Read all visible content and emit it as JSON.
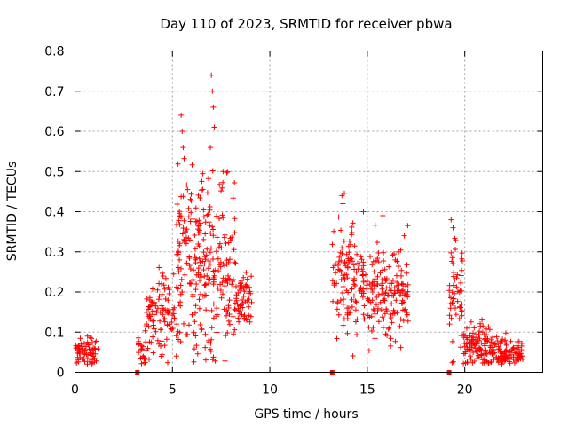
{
  "chart_data": {
    "type": "scatter",
    "title": "Day 110 of 2023, SRMTID for receiver pbwa",
    "xlabel": "GPS time / hours",
    "ylabel": "SRMTID / TECUs",
    "xlim": [
      0,
      24
    ],
    "ylim": [
      0,
      0.8
    ],
    "grid": true,
    "x_ticks": [
      0,
      5,
      10,
      15,
      20
    ],
    "y_ticks": [
      0,
      0.1,
      0.2,
      0.3,
      0.4,
      0.5,
      0.6,
      0.7,
      0.8
    ],
    "marker": "plus",
    "color": "#ff0000",
    "series": [
      {
        "name": "SRMTID",
        "clusters": [
          {
            "x_start": 0.0,
            "x_end": 1.2,
            "base": 0.05,
            "spread": 0.02,
            "count": 70
          },
          {
            "x_start": 3.2,
            "x_end": 3.6,
            "base": 0.05,
            "spread": 0.03,
            "count": 20
          },
          {
            "x_start": 3.6,
            "x_end": 4.2,
            "base": 0.12,
            "spread": 0.04,
            "count": 45
          },
          {
            "x_start": 4.2,
            "x_end": 5.2,
            "base": 0.15,
            "spread": 0.05,
            "count": 60
          },
          {
            "x_start": 5.2,
            "x_end": 6.6,
            "base": 0.28,
            "spread": 0.12,
            "count": 140
          },
          {
            "x_start": 6.6,
            "x_end": 8.2,
            "base": 0.25,
            "spread": 0.11,
            "count": 140
          },
          {
            "x_start": 8.2,
            "x_end": 9.1,
            "base": 0.19,
            "spread": 0.04,
            "count": 60
          },
          {
            "x_start": 13.2,
            "x_end": 14.4,
            "base": 0.24,
            "spread": 0.08,
            "count": 90
          },
          {
            "x_start": 14.4,
            "x_end": 16.0,
            "base": 0.21,
            "spread": 0.06,
            "count": 110
          },
          {
            "x_start": 16.0,
            "x_end": 17.1,
            "base": 0.19,
            "spread": 0.06,
            "count": 80
          },
          {
            "x_start": 19.2,
            "x_end": 19.9,
            "base": 0.2,
            "spread": 0.08,
            "count": 55
          },
          {
            "x_start": 19.9,
            "x_end": 21.4,
            "base": 0.07,
            "spread": 0.025,
            "count": 110
          },
          {
            "x_start": 21.4,
            "x_end": 23.0,
            "base": 0.05,
            "spread": 0.02,
            "count": 110
          }
        ],
        "peaks": [
          {
            "x": 5.45,
            "y": 0.64
          },
          {
            "x": 5.5,
            "y": 0.6
          },
          {
            "x": 5.55,
            "y": 0.56
          },
          {
            "x": 7.0,
            "y": 0.74
          },
          {
            "x": 7.05,
            "y": 0.7
          },
          {
            "x": 7.1,
            "y": 0.66
          },
          {
            "x": 7.15,
            "y": 0.61
          },
          {
            "x": 6.95,
            "y": 0.56
          },
          {
            "x": 7.6,
            "y": 0.5
          },
          {
            "x": 13.7,
            "y": 0.44
          },
          {
            "x": 13.75,
            "y": 0.42
          },
          {
            "x": 14.8,
            "y": 0.4
          },
          {
            "x": 15.8,
            "y": 0.39
          },
          {
            "x": 16.9,
            "y": 0.34
          },
          {
            "x": 19.3,
            "y": 0.38
          },
          {
            "x": 19.4,
            "y": 0.36
          }
        ],
        "zeros": [
          3.2,
          13.2,
          19.2
        ]
      }
    ]
  }
}
